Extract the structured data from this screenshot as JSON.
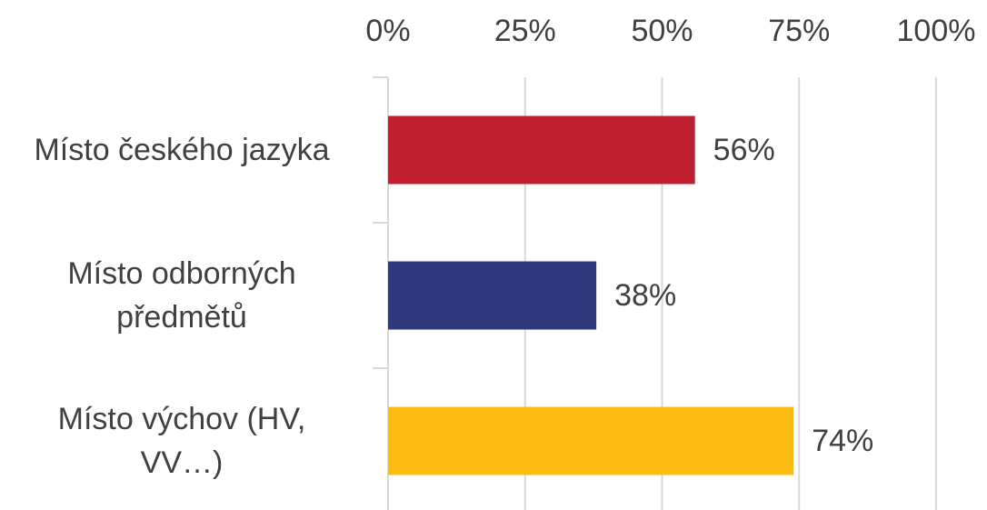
{
  "chart_data": {
    "type": "bar",
    "orientation": "horizontal",
    "categories": [
      "Místo českého jazyka",
      "Místo odborných předmětů",
      "Místo výchov (HV, VV…)"
    ],
    "values": [
      56,
      38,
      74
    ],
    "value_labels": [
      "56%",
      "38%",
      "74%"
    ],
    "colors": [
      "#c01f2f",
      "#2e3a7c",
      "#fbbb13"
    ],
    "xlim": [
      0,
      100
    ],
    "xticks": [
      {
        "value": 0,
        "label": "0%"
      },
      {
        "value": 25,
        "label": "25%"
      },
      {
        "value": 50,
        "label": "50%"
      },
      {
        "value": 75,
        "label": "75%"
      },
      {
        "value": 100,
        "label": "100%"
      }
    ],
    "grid": true
  }
}
